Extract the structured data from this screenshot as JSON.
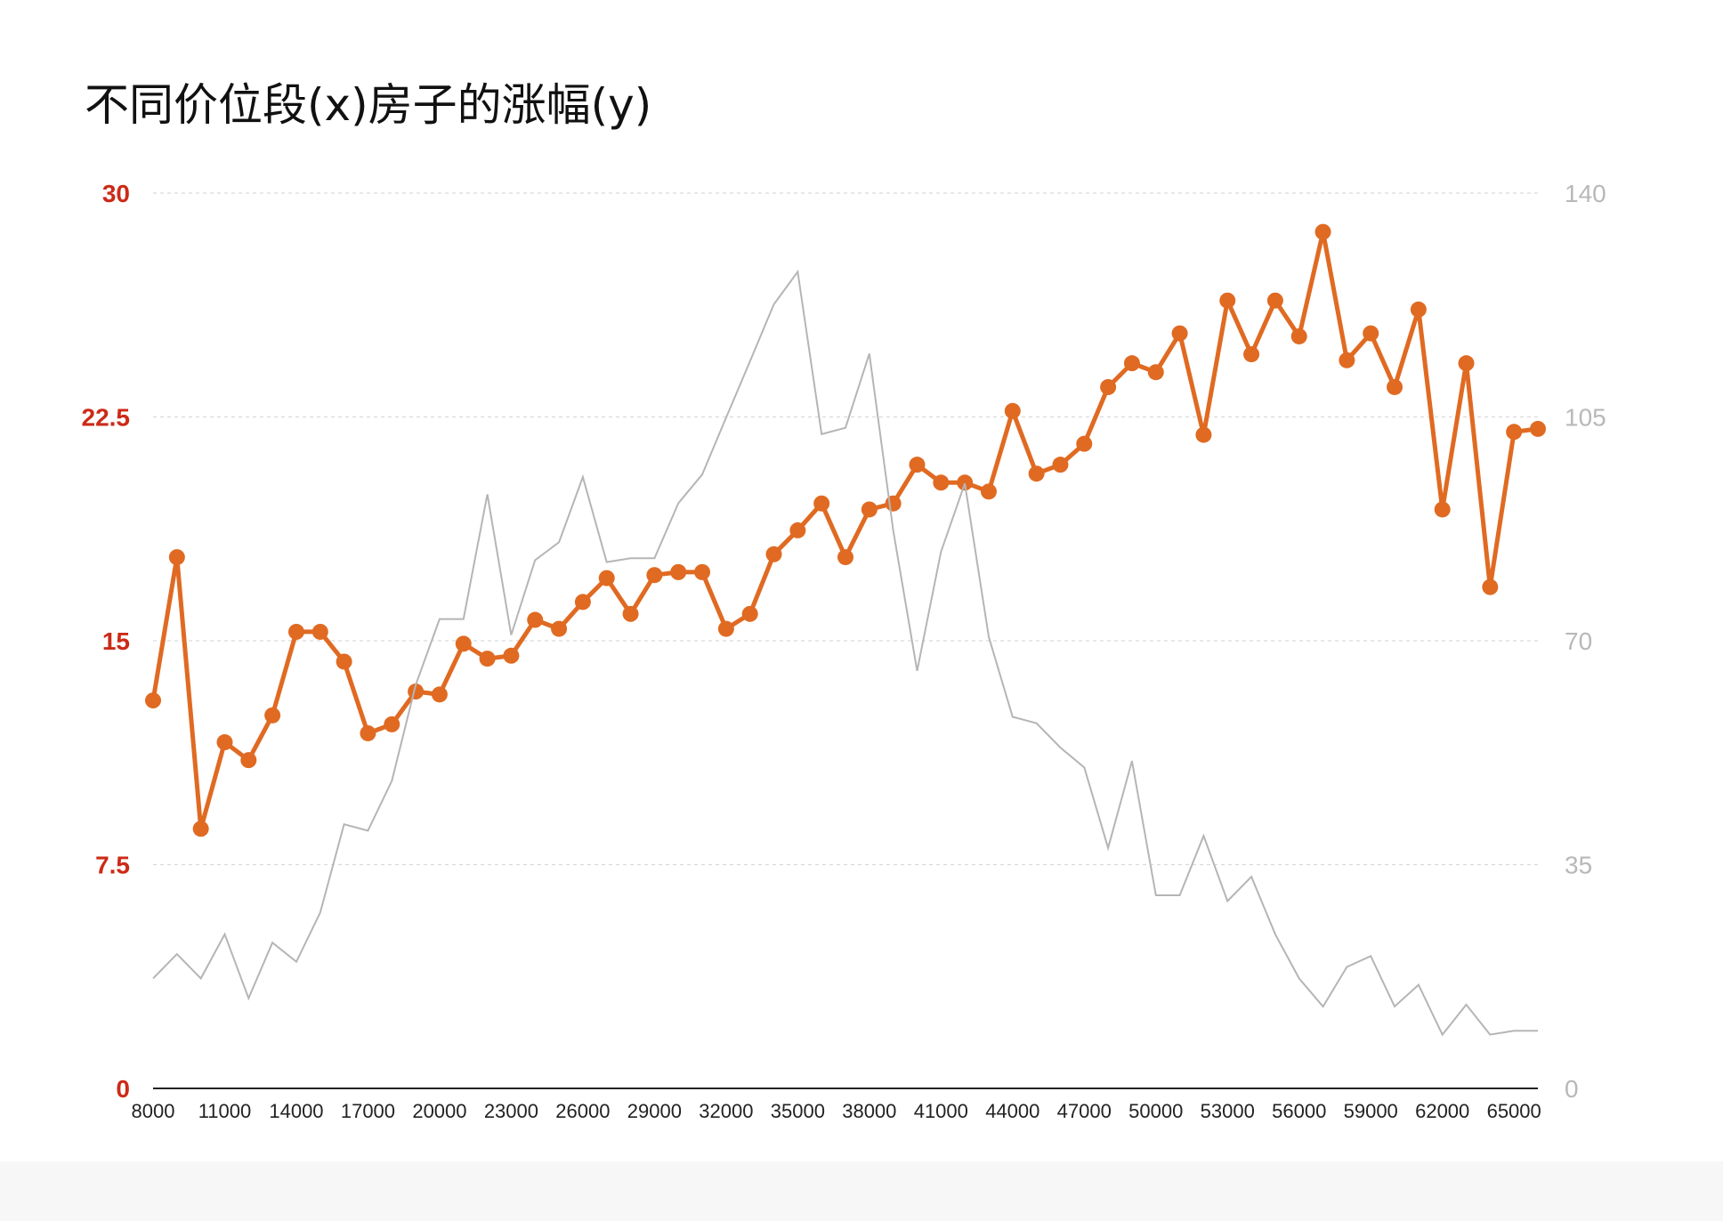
{
  "chart_data": {
    "type": "line",
    "title": "不同价位段(x)房子的涨幅(y)",
    "x": [
      8000,
      9000,
      10000,
      11000,
      12000,
      13000,
      14000,
      15000,
      16000,
      17000,
      18000,
      19000,
      20000,
      21000,
      22000,
      23000,
      24000,
      25000,
      26000,
      27000,
      28000,
      29000,
      30000,
      31000,
      32000,
      33000,
      34000,
      35000,
      36000,
      37000,
      38000,
      39000,
      40000,
      41000,
      42000,
      43000,
      44000,
      45000,
      46000,
      47000,
      48000,
      49000,
      50000,
      51000,
      52000,
      53000,
      54000,
      55000,
      56000,
      57000,
      58000,
      59000,
      60000,
      61000,
      62000,
      63000,
      64000,
      65000,
      66000
    ],
    "x_tick_labels": [
      "8000",
      "11000",
      "14000",
      "17000",
      "20000",
      "23000",
      "26000",
      "29000",
      "32000",
      "35000",
      "38000",
      "41000",
      "44000",
      "47000",
      "50000",
      "53000",
      "56000",
      "59000",
      "62000",
      "65000"
    ],
    "x_tick_values": [
      8000,
      11000,
      14000,
      17000,
      20000,
      23000,
      26000,
      29000,
      32000,
      35000,
      38000,
      41000,
      44000,
      47000,
      50000,
      53000,
      56000,
      59000,
      62000,
      65000
    ],
    "xlim": [
      8000,
      66000
    ],
    "y_left": {
      "ylim": [
        0,
        30
      ],
      "ticks": [
        "0",
        "7.5",
        "15",
        "22.5",
        "30"
      ],
      "tick_values": [
        0,
        7.5,
        15,
        22.5,
        30
      ],
      "color": "#cc2a17"
    },
    "y_right": {
      "ylim": [
        0,
        140
      ],
      "ticks": [
        "0",
        "35",
        "70",
        "105",
        "140"
      ],
      "tick_values": [
        0,
        35,
        70,
        105,
        140
      ],
      "color": "#b8b8b8"
    },
    "grid": true,
    "series": [
      {
        "axis": "left",
        "color": "#e06a22",
        "markers": true,
        "values": [
          13.0,
          17.8,
          8.7,
          11.6,
          11.0,
          12.5,
          15.3,
          15.3,
          14.3,
          11.9,
          12.2,
          13.3,
          13.2,
          14.9,
          14.4,
          14.5,
          15.7,
          15.4,
          16.3,
          17.1,
          15.9,
          17.2,
          17.3,
          17.3,
          15.4,
          15.9,
          17.9,
          18.7,
          19.6,
          17.8,
          19.4,
          19.6,
          20.9,
          20.3,
          20.3,
          20.0,
          22.7,
          20.6,
          20.9,
          21.6,
          23.5,
          24.3,
          24.0,
          25.3,
          21.9,
          26.4,
          24.6,
          26.4,
          25.2,
          28.7,
          24.4,
          25.3,
          23.5,
          26.1,
          19.4,
          24.3,
          16.8,
          22.0,
          22.1
        ]
      },
      {
        "axis": "right",
        "color": "#b5b5b5",
        "markers": false,
        "values": [
          17.2,
          21.0,
          17.2,
          24.1,
          14.1,
          22.8,
          19.8,
          27.5,
          41.3,
          40.3,
          48.1,
          63.1,
          73.4,
          73.4,
          92.9,
          70.9,
          82.6,
          85.4,
          95.6,
          82.3,
          82.9,
          82.9,
          91.5,
          96.0,
          104.9,
          113.7,
          122.6,
          127.7,
          102.3,
          103.3,
          114.9,
          87.2,
          65.3,
          83.9,
          94.6,
          70.6,
          58.1,
          57.1,
          53.3,
          50.2,
          37.6,
          51.2,
          30.2,
          30.2,
          39.5,
          29.3,
          33.1,
          24.1,
          17.2,
          12.8,
          19.0,
          20.7,
          12.8,
          16.2,
          8.4,
          13.1,
          8.4,
          9.0,
          9.0
        ]
      }
    ]
  }
}
